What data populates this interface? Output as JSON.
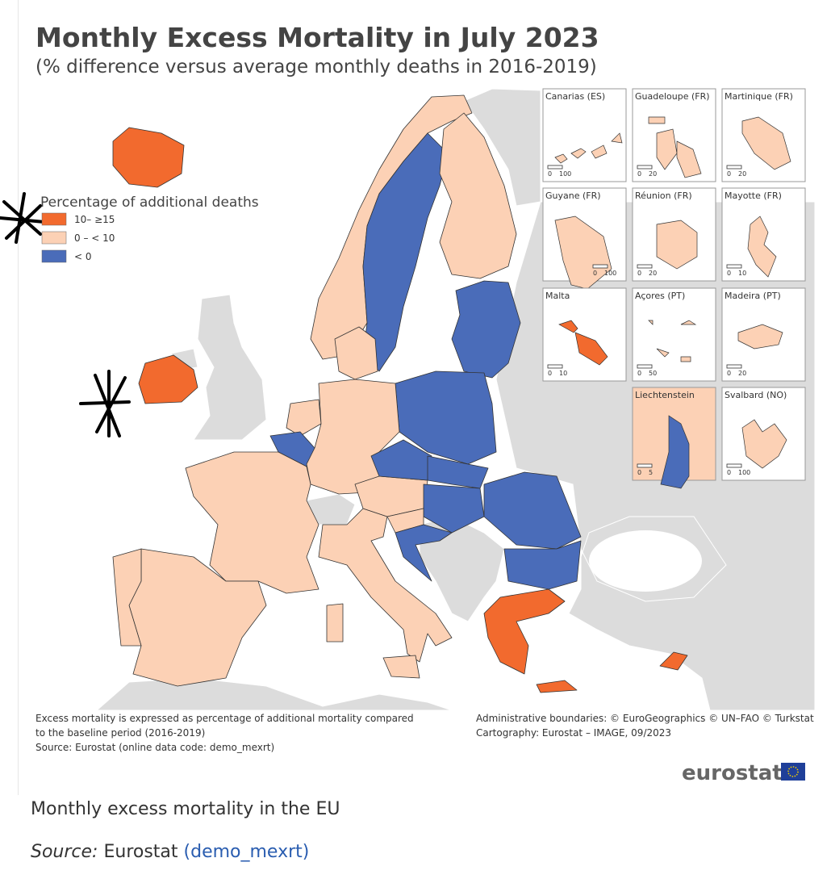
{
  "header": {
    "title": "Monthly Excess Mortality in July 2023",
    "subtitle": "(% difference versus average monthly deaths in 2016-2019)"
  },
  "legend": {
    "title": "Percentage of additional deaths",
    "items": [
      {
        "label": "10– ≥15",
        "color": "#f26a2e"
      },
      {
        "label": "0 – < 10",
        "color": "#fcd1b5"
      },
      {
        "label": "< 0",
        "color": "#4a6cb9"
      }
    ]
  },
  "insets": [
    {
      "label": "Canarias (ES)",
      "scale": [
        "0",
        "100"
      ]
    },
    {
      "label": "Guadeloupe (FR)",
      "scale": [
        "0",
        "20"
      ]
    },
    {
      "label": "Martinique (FR)",
      "scale": [
        "0",
        "20"
      ]
    },
    {
      "label": "Guyane (FR)",
      "scale": [
        "0",
        "100"
      ]
    },
    {
      "label": "Réunion (FR)",
      "scale": [
        "0",
        "20"
      ]
    },
    {
      "label": "Mayotte (FR)",
      "scale": [
        "0",
        "10"
      ]
    },
    {
      "label": "Malta",
      "scale": [
        "0",
        "10"
      ]
    },
    {
      "label": "Açores (PT)",
      "scale": [
        "0",
        "50"
      ]
    },
    {
      "label": "Madeira (PT)",
      "scale": [
        "0",
        "20"
      ]
    },
    {
      "label": "Liechtenstein",
      "scale": [
        "0",
        "5"
      ]
    },
    {
      "label": "Svalbard (NO)",
      "scale": [
        "0",
        "100"
      ]
    }
  ],
  "notes": {
    "left": [
      "Excess mortality is expressed as percentage of additional mortality compared",
      "to the baseline period (2016-2019)",
      "Source: Eurostat (online data code: demo_mexrt)"
    ],
    "right": [
      "Administrative boundaries: © EuroGeographics © UN–FAO © Turkstat",
      "Cartography: Eurostat – IMAGE, 09/2023"
    ]
  },
  "logo": "eurostat",
  "caption": {
    "text": "Monthly excess mortality in the EU",
    "source_label": "Source:",
    "source": "Eurostat",
    "link": "(demo_mexrt)"
  }
}
